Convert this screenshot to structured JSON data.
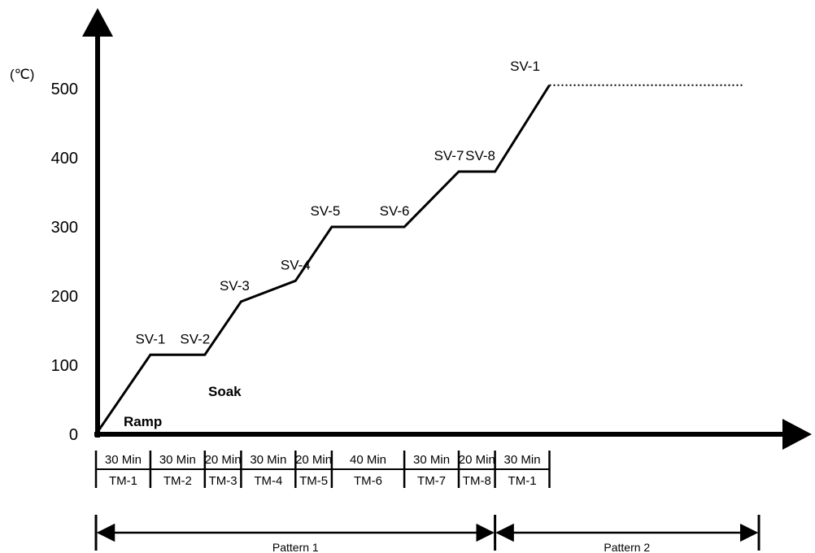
{
  "chart_data": {
    "type": "line",
    "y_unit": "(℃)",
    "y_ticks": [
      "0",
      "100",
      "200",
      "300",
      "400",
      "500"
    ],
    "ylim": [
      0,
      500
    ],
    "segments_minutes": [
      30,
      30,
      20,
      30,
      20,
      40,
      30,
      20,
      30
    ],
    "time_labels": [
      "30 Min",
      "30 Min",
      "20 Min",
      "30 Min",
      "20 Min",
      "40 Min",
      "30 Min",
      "20 Min",
      "30 Min"
    ],
    "tm_labels": [
      "TM-1",
      "TM-2",
      "TM-3",
      "TM-4",
      "TM-5",
      "TM-6",
      "TM-7",
      "TM-8",
      "TM-1"
    ],
    "setpoint_values": [
      0,
      115,
      115,
      192,
      222,
      300,
      300,
      380,
      380,
      505
    ],
    "setpoint_labels": [
      "",
      "SV-1",
      "SV-2",
      "SV-3",
      "SV-4",
      "SV-5",
      "SV-6",
      "SV-7",
      "SV-8",
      "SV-1"
    ],
    "continuation_value": 505,
    "annotations": [
      "Ramp",
      "Soak"
    ],
    "patterns": [
      "Pattern 1",
      "Pattern 2"
    ],
    "grid": false,
    "legend": "none"
  }
}
